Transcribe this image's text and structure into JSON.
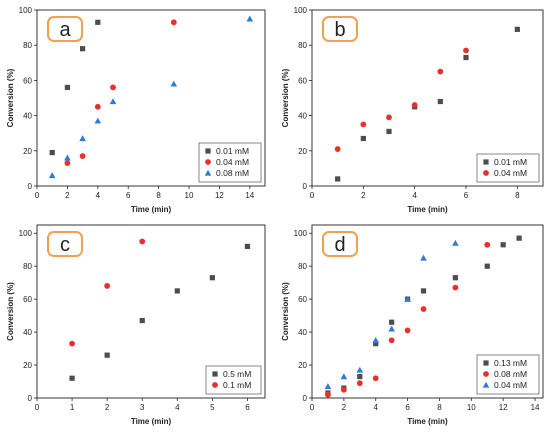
{
  "chart_data": [
    {
      "type": "scatter",
      "panel_label": "a",
      "xlabel": "Time (min)",
      "ylabel": "Conversion (%)",
      "xlim": [
        0,
        15
      ],
      "ylim": [
        0,
        100
      ],
      "xticks": [
        0,
        2,
        4,
        6,
        8,
        10,
        12,
        14
      ],
      "yticks": [
        0,
        20,
        40,
        60,
        80,
        100
      ],
      "legend_position": "bottom-right",
      "series": [
        {
          "name": "0.01 mM",
          "marker": "square",
          "color": "#4d4d4d",
          "x": [
            1,
            2,
            3,
            4
          ],
          "y": [
            19,
            56,
            78,
            93
          ]
        },
        {
          "name": "0.04 mM",
          "marker": "circle",
          "color": "#e8302e",
          "x": [
            2,
            3,
            4,
            5,
            9
          ],
          "y": [
            13,
            17,
            45,
            56,
            93
          ]
        },
        {
          "name": "0.08 mM",
          "marker": "triangle",
          "color": "#2f7bd8",
          "x": [
            1,
            2,
            3,
            4,
            5,
            9,
            14
          ],
          "y": [
            6,
            16,
            27,
            37,
            48,
            58,
            95
          ]
        }
      ]
    },
    {
      "type": "scatter",
      "panel_label": "b",
      "xlabel": "Time (min)",
      "ylabel": "Conversion (%)",
      "xlim": [
        0,
        9
      ],
      "ylim": [
        0,
        100
      ],
      "xticks": [
        0,
        2,
        4,
        6,
        8
      ],
      "yticks": [
        0,
        20,
        40,
        60,
        80,
        100
      ],
      "legend_position": "bottom-right",
      "series": [
        {
          "name": "0.01 mM",
          "marker": "square",
          "color": "#4d4d4d",
          "x": [
            1,
            2,
            3,
            4,
            5,
            6,
            8
          ],
          "y": [
            4,
            27,
            31,
            45,
            48,
            73,
            89
          ]
        },
        {
          "name": "0.04 mM",
          "marker": "circle",
          "color": "#e8302e",
          "x": [
            1,
            2,
            3,
            4,
            5,
            6
          ],
          "y": [
            21,
            35,
            39,
            46,
            65,
            77
          ]
        }
      ]
    },
    {
      "type": "scatter",
      "panel_label": "c",
      "xlabel": "Time (min)",
      "ylabel": "Conversion (%)",
      "xlim": [
        0,
        6.5
      ],
      "ylim": [
        0,
        105
      ],
      "xticks": [
        0,
        1,
        2,
        3,
        4,
        5,
        6
      ],
      "yticks": [
        0,
        20,
        40,
        60,
        80,
        100
      ],
      "legend_position": "bottom-right",
      "series": [
        {
          "name": "0.5 mM",
          "marker": "square",
          "color": "#4d4d4d",
          "x": [
            1,
            2,
            3,
            4,
            5,
            6
          ],
          "y": [
            12,
            26,
            47,
            65,
            73,
            92
          ]
        },
        {
          "name": "0.1 mM",
          "marker": "circle",
          "color": "#e8302e",
          "x": [
            1,
            2,
            3
          ],
          "y": [
            33,
            68,
            95
          ]
        }
      ]
    },
    {
      "type": "scatter",
      "panel_label": "d",
      "xlabel": "Time (min)",
      "ylabel": "Conversion (%)",
      "xlim": [
        0,
        14.5
      ],
      "ylim": [
        0,
        105
      ],
      "xticks": [
        0,
        2,
        4,
        6,
        8,
        10,
        12,
        14
      ],
      "yticks": [
        0,
        20,
        40,
        60,
        80,
        100
      ],
      "legend_position": "bottom-right",
      "series": [
        {
          "name": "0.13 mM",
          "marker": "square",
          "color": "#4d4d4d",
          "x": [
            1,
            2,
            3,
            4,
            5,
            6,
            7,
            9,
            11,
            12,
            13
          ],
          "y": [
            3,
            6,
            13,
            33,
            46,
            60,
            65,
            73,
            80,
            93,
            97
          ]
        },
        {
          "name": "0.08 mM",
          "marker": "circle",
          "color": "#e8302e",
          "x": [
            1,
            2,
            3,
            4,
            5,
            6,
            7,
            9,
            11
          ],
          "y": [
            2,
            5,
            9,
            12,
            35,
            41,
            54,
            67,
            93
          ]
        },
        {
          "name": "0.04 mM",
          "marker": "triangle",
          "color": "#2f7bd8",
          "x": [
            1,
            2,
            3,
            4,
            5,
            6,
            7,
            9
          ],
          "y": [
            7,
            13,
            17,
            35,
            42,
            60,
            85,
            94
          ]
        }
      ]
    }
  ],
  "colors": {
    "panel_tag_border": "#f0a050",
    "axis": "#222222"
  }
}
